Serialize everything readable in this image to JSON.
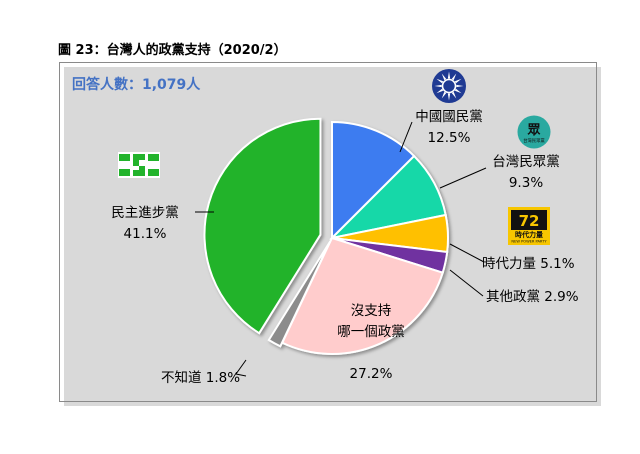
{
  "figure_title": "圖 23：台灣人的政黨支持（2020/2）",
  "respondents": "回答人數：1,079人",
  "chart_data": {
    "type": "pie",
    "title": "圖 23：台灣人的政黨支持（2020/2）",
    "start_angle_deg": 0,
    "direction": "clockwise",
    "slices": [
      {
        "label": "中國國民黨",
        "value": 12.5,
        "display": "12.5%",
        "color": "#3c7bf0"
      },
      {
        "label": "台灣民眾黨",
        "value": 9.3,
        "display": "9.3%",
        "color": "#19d8a8"
      },
      {
        "label": "時代力量",
        "value": 5.1,
        "display": "5.1%",
        "color": "#ffc000"
      },
      {
        "label": "其他政黨",
        "value": 2.9,
        "display": "2.9%",
        "color": "#7030a0"
      },
      {
        "label": "沒支持\n哪一個政黨",
        "value": 27.2,
        "display": "27.2%",
        "color": "#ffcccc"
      },
      {
        "label": "不知道",
        "value": 1.8,
        "display": "1.8%",
        "color": "#8c8c8c"
      },
      {
        "label": "民主進步黨",
        "value": 41.1,
        "display": "41.1%",
        "color": "#22b32b"
      }
    ]
  },
  "logos": {
    "kmt": {
      "icon": "kmt-sun-emblem-icon",
      "color": "#1f3a93"
    },
    "tpp": {
      "icon": "tpp-logo-icon",
      "color": "#2aa9a0",
      "text": "眾",
      "subtext": "台灣民眾黨"
    },
    "npp": {
      "icon": "npp-logo-icon",
      "color": "#f7c600",
      "text": "時代力量",
      "subtext": "NEW POWER PARTY"
    },
    "dpp": {
      "icon": "dpp-logo-icon",
      "color": "#22b32b"
    }
  }
}
